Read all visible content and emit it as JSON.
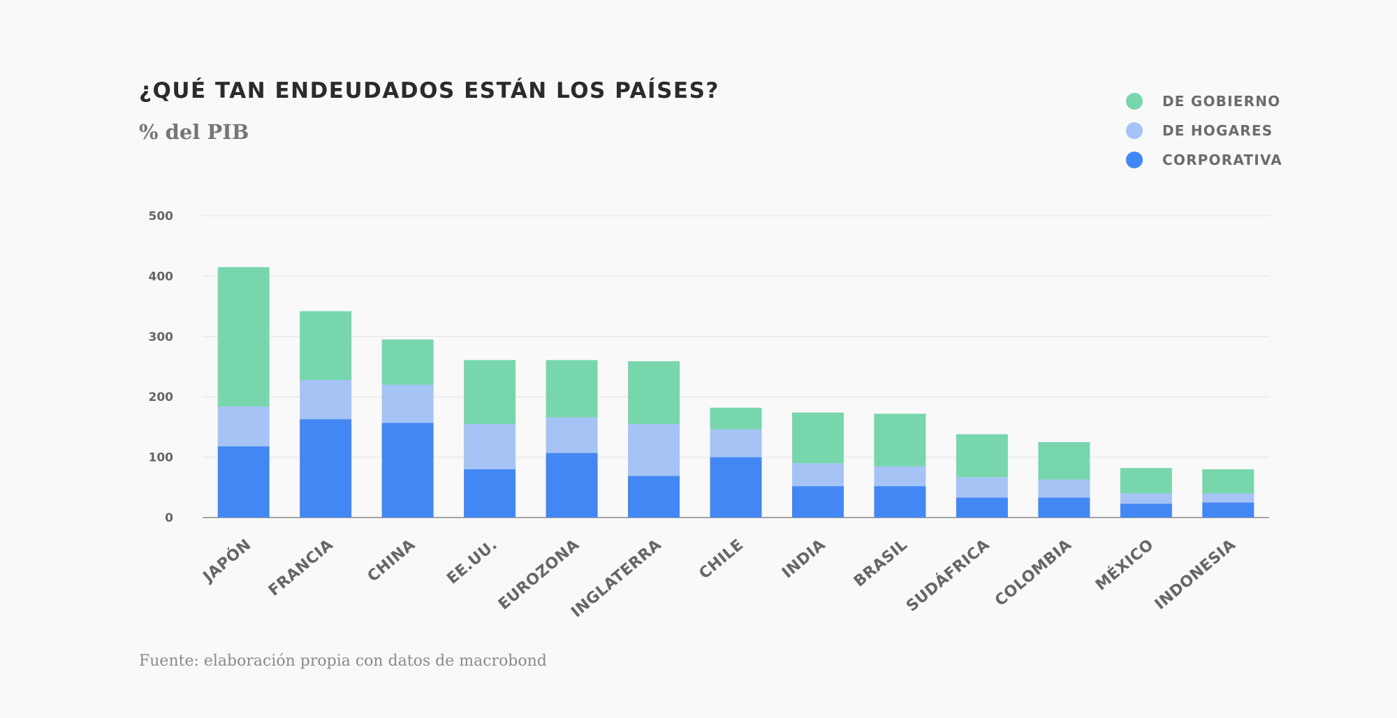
{
  "title": "¿QUÉ TAN ENDEUDADOS ESTÁN LOS PAÍSES?",
  "subtitle": "% del PIB",
  "source": "Fuente: elaboración propia con datos de macrobond",
  "colors": {
    "gobierno": "#78d6ad",
    "hogares": "#a5c3f5",
    "corporativa": "#4387f4"
  },
  "legend": [
    {
      "label": "DE GOBIERNO",
      "color": "#78d6ad"
    },
    {
      "label": "DE HOGARES",
      "color": "#a5c3f5"
    },
    {
      "label": "CORPORATIVA",
      "color": "#4387f4"
    }
  ],
  "chart_data": {
    "type": "bar",
    "stacked": true,
    "categories": [
      "JAPÓN",
      "FRANCIA",
      "CHINA",
      "EE.UU.",
      "EUROZONA",
      "INGLATERRA",
      "CHILE",
      "INDIA",
      "BRASIL",
      "SUDÁFRICA",
      "COLOMBIA",
      "MÉXICO",
      "INDONESIA"
    ],
    "series": [
      {
        "name": "CORPORATIVA",
        "values": [
          118,
          163,
          157,
          80,
          107,
          69,
          100,
          52,
          52,
          33,
          33,
          23,
          25
        ]
      },
      {
        "name": "DE HOGARES",
        "values": [
          66,
          65,
          63,
          75,
          59,
          86,
          46,
          38,
          33,
          34,
          30,
          17,
          15
        ]
      },
      {
        "name": "DE GOBIERNO",
        "values": [
          231,
          114,
          75,
          106,
          95,
          104,
          36,
          84,
          87,
          71,
          62,
          42,
          40
        ]
      }
    ],
    "yticks": [
      0,
      100,
      200,
      300,
      400,
      500
    ],
    "ylim": [
      0,
      500
    ],
    "grid": true,
    "legend_position": "top-right"
  }
}
